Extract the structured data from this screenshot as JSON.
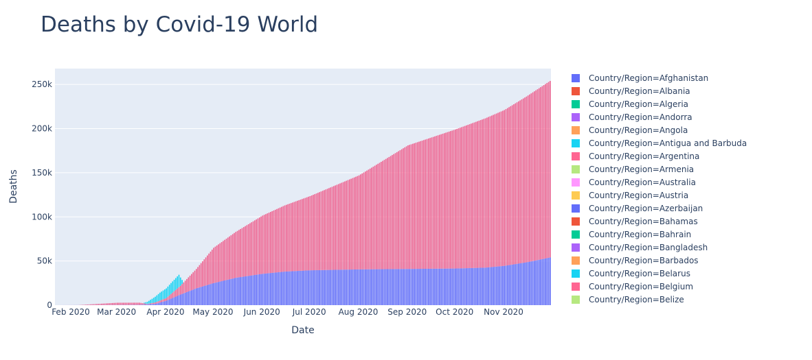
{
  "chart_data": {
    "type": "bar",
    "title": "Deaths by Covid-19 World",
    "xlabel": "Date",
    "ylabel": "Deaths",
    "x_range": [
      "2020-01-22",
      "2020-11-30"
    ],
    "ylim": [
      0,
      268000
    ],
    "y_ticks": [
      {
        "value": 0,
        "label": "0"
      },
      {
        "value": 50000,
        "label": "50k"
      },
      {
        "value": 100000,
        "label": "100k"
      },
      {
        "value": 150000,
        "label": "150k"
      },
      {
        "value": 200000,
        "label": "200k"
      },
      {
        "value": 250000,
        "label": "250k"
      }
    ],
    "x_ticks": [
      {
        "date": "2020-02-01",
        "label": "Feb 2020"
      },
      {
        "date": "2020-03-01",
        "label": "Mar 2020"
      },
      {
        "date": "2020-04-01",
        "label": "Apr 2020"
      },
      {
        "date": "2020-05-01",
        "label": "May 2020"
      },
      {
        "date": "2020-06-01",
        "label": "Jun 2020"
      },
      {
        "date": "2020-07-01",
        "label": "Jul 2020"
      },
      {
        "date": "2020-08-01",
        "label": "Aug 2020"
      },
      {
        "date": "2020-09-01",
        "label": "Sep 2020"
      },
      {
        "date": "2020-10-01",
        "label": "Oct 2020"
      },
      {
        "date": "2020-11-01",
        "label": "Nov 2020"
      }
    ],
    "grid": true,
    "legend_position": "right",
    "plot_background": "#e5ecf6",
    "series": [
      {
        "name": "Country/Region=Afghanistan",
        "color": "#636efa",
        "points": [
          {
            "date": "2020-01-22",
            "value": 0
          },
          {
            "date": "2020-03-15",
            "value": 300
          },
          {
            "date": "2020-03-25",
            "value": 1500
          },
          {
            "date": "2020-04-01",
            "value": 5000
          },
          {
            "date": "2020-04-10",
            "value": 12000
          },
          {
            "date": "2020-04-20",
            "value": 19000
          },
          {
            "date": "2020-05-01",
            "value": 25000
          },
          {
            "date": "2020-05-15",
            "value": 31000
          },
          {
            "date": "2020-06-01",
            "value": 35500
          },
          {
            "date": "2020-06-15",
            "value": 38000
          },
          {
            "date": "2020-07-01",
            "value": 39500
          },
          {
            "date": "2020-08-01",
            "value": 40500
          },
          {
            "date": "2020-09-01",
            "value": 41000
          },
          {
            "date": "2020-10-01",
            "value": 41500
          },
          {
            "date": "2020-10-20",
            "value": 42500
          },
          {
            "date": "2020-11-01",
            "value": 44500
          },
          {
            "date": "2020-11-15",
            "value": 48500
          },
          {
            "date": "2020-11-30",
            "value": 54000
          }
        ]
      },
      {
        "name": "Country/Region=Belgium",
        "color": "#ef6390",
        "points": [
          {
            "date": "2020-01-22",
            "value": 0
          },
          {
            "date": "2020-02-05",
            "value": 50
          },
          {
            "date": "2020-02-20",
            "value": 1500
          },
          {
            "date": "2020-03-01",
            "value": 2500
          },
          {
            "date": "2020-03-15",
            "value": 2500
          },
          {
            "date": "2020-03-20",
            "value": 500
          },
          {
            "date": "2020-04-01",
            "value": 3000
          },
          {
            "date": "2020-04-10",
            "value": 10000
          },
          {
            "date": "2020-04-20",
            "value": 22000
          },
          {
            "date": "2020-05-01",
            "value": 40000
          },
          {
            "date": "2020-05-15",
            "value": 52000
          },
          {
            "date": "2020-06-01",
            "value": 66000
          },
          {
            "date": "2020-06-15",
            "value": 75000
          },
          {
            "date": "2020-07-01",
            "value": 84000
          },
          {
            "date": "2020-08-01",
            "value": 106500
          },
          {
            "date": "2020-09-01",
            "value": 140000
          },
          {
            "date": "2020-10-01",
            "value": 157500
          },
          {
            "date": "2020-11-01",
            "value": 176500
          },
          {
            "date": "2020-11-30",
            "value": 200000
          }
        ]
      },
      {
        "name": "Country/Region=Belarus",
        "color": "#19d3f3",
        "points": [
          {
            "date": "2020-01-22",
            "value": 0
          },
          {
            "date": "2020-03-17",
            "value": 0
          },
          {
            "date": "2020-03-22",
            "value": 4000
          },
          {
            "date": "2020-03-28",
            "value": 9000
          },
          {
            "date": "2020-04-03",
            "value": 12000
          },
          {
            "date": "2020-04-09",
            "value": 14000
          },
          {
            "date": "2020-04-12",
            "value": 0
          }
        ]
      }
    ],
    "legend": [
      {
        "label": "Country/Region=Afghanistan",
        "color": "#636efa"
      },
      {
        "label": "Country/Region=Albania",
        "color": "#ef553b"
      },
      {
        "label": "Country/Region=Algeria",
        "color": "#00cc96"
      },
      {
        "label": "Country/Region=Andorra",
        "color": "#ab63fa"
      },
      {
        "label": "Country/Region=Angola",
        "color": "#ffa15a"
      },
      {
        "label": "Country/Region=Antigua and Barbuda",
        "color": "#19d3f3"
      },
      {
        "label": "Country/Region=Argentina",
        "color": "#ff6692"
      },
      {
        "label": "Country/Region=Armenia",
        "color": "#b6e880"
      },
      {
        "label": "Country/Region=Australia",
        "color": "#ff97ff"
      },
      {
        "label": "Country/Region=Austria",
        "color": "#fecb52"
      },
      {
        "label": "Country/Region=Azerbaijan",
        "color": "#636efa"
      },
      {
        "label": "Country/Region=Bahamas",
        "color": "#ef553b"
      },
      {
        "label": "Country/Region=Bahrain",
        "color": "#00cc96"
      },
      {
        "label": "Country/Region=Bangladesh",
        "color": "#ab63fa"
      },
      {
        "label": "Country/Region=Barbados",
        "color": "#ffa15a"
      },
      {
        "label": "Country/Region=Belarus",
        "color": "#19d3f3"
      },
      {
        "label": "Country/Region=Belgium",
        "color": "#ff6692"
      },
      {
        "label": "Country/Region=Belize",
        "color": "#b6e880"
      }
    ]
  }
}
